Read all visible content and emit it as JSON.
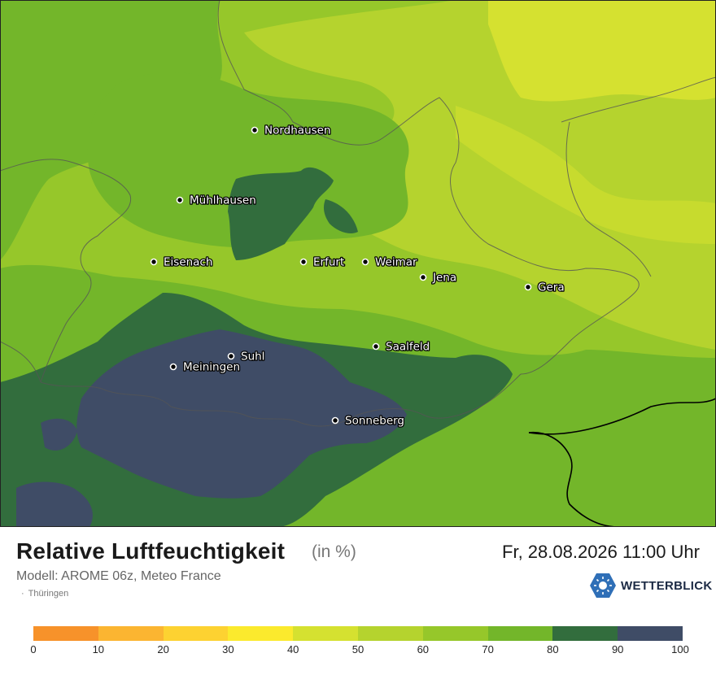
{
  "map": {
    "cities": [
      {
        "name": "Nordhausen"
      },
      {
        "name": "Mühlhausen"
      },
      {
        "name": "Eisenach"
      },
      {
        "name": "Erfurt"
      },
      {
        "name": "Weimar"
      },
      {
        "name": "Jena"
      },
      {
        "name": "Gera"
      },
      {
        "name": "Saalfeld"
      },
      {
        "name": "Suhl"
      },
      {
        "name": "Meiningen"
      },
      {
        "name": "Sonneberg"
      }
    ]
  },
  "header": {
    "title": "Relative Luftfeuchtigkeit",
    "unit": "(in %)",
    "datetime": "Fr, 28.08.2026 11:00 Uhr",
    "model": "Modell: AROME 06z, Meteo France",
    "region": "Thüringen",
    "brand": "WETTERBLICK"
  },
  "legend": {
    "colors": [
      "#f7922a",
      "#fbb531",
      "#fdd231",
      "#fbea2d",
      "#d5e130",
      "#b5d32e",
      "#96c72a",
      "#73b62a",
      "#326d3d",
      "#3f4c66"
    ],
    "ticks": [
      "0",
      "10",
      "20",
      "30",
      "40",
      "50",
      "60",
      "70",
      "80",
      "90",
      "100"
    ]
  },
  "colors": {
    "dark_blue": "#3f4c66",
    "dark_green": "#326d3d",
    "green": "#73b62a",
    "light_green": "#96c72a",
    "yellow_green": "#b5d32e",
    "yellow": "#d5e130"
  }
}
